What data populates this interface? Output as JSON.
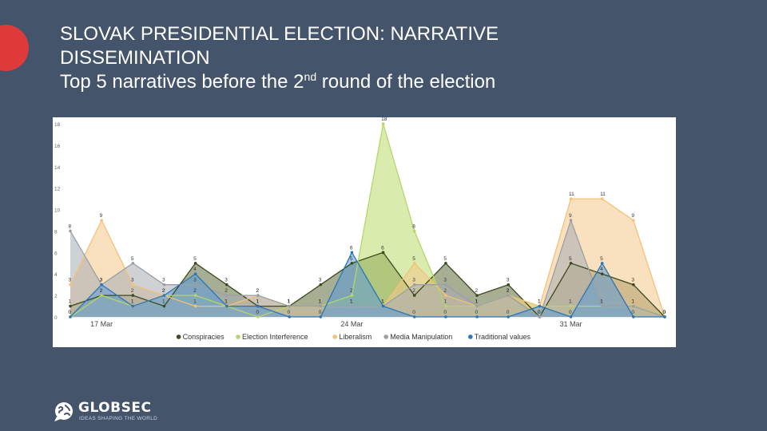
{
  "slide": {
    "title_line1": "SLOVAK PRESIDENTIAL ELECTION: NARRATIVE",
    "title_line2": "DISSEMINATION",
    "title_line3_pre": "Top 5 narratives before the 2",
    "title_line3_sup": "nd",
    "title_line3_post": " round of the election",
    "accent_color": "#e03b3b",
    "background_color": "#44546a"
  },
  "logo": {
    "name": "GLOBSEC",
    "tagline": "IDEAS SHAPING THE WORLD",
    "icon": "globe-speech-bubble-icon"
  },
  "chart_data": {
    "type": "area",
    "x_tick_labels": [
      "17 Mar",
      "24 Mar",
      "31 Mar"
    ],
    "x_tick_index": [
      1,
      9,
      16
    ],
    "ylim": [
      0,
      18
    ],
    "y_ticks": [
      0,
      2,
      4,
      6,
      8,
      10,
      12,
      14,
      16,
      18
    ],
    "legend_position": "bottom",
    "grid": false,
    "series": [
      {
        "name": "Conspiracies",
        "color": "#3b4a1e",
        "fill": "#5c6b3d",
        "values": [
          1,
          2,
          2,
          1,
          5,
          3,
          1,
          1,
          3,
          5,
          6,
          2,
          5,
          2,
          3,
          0,
          5,
          4,
          3,
          0
        ]
      },
      {
        "name": "Election Interference",
        "color": "#b5d66a",
        "fill": "#b9dc6b",
        "values": [
          0,
          2,
          1,
          2,
          2,
          1,
          0,
          1,
          1,
          2,
          18,
          8,
          1,
          1,
          2,
          1,
          1,
          1,
          1,
          0
        ]
      },
      {
        "name": "Liberalism",
        "color": "#f2c27a",
        "fill": "#f4c68a",
        "values": [
          3,
          9,
          3,
          2,
          1,
          1,
          2,
          1,
          1,
          1,
          1,
          5,
          2,
          1,
          2,
          1,
          11,
          11,
          9,
          0
        ]
      },
      {
        "name": "Media Manipulation",
        "color": "#9aa0a6",
        "fill": "#a7adb3",
        "values": [
          8,
          3,
          5,
          3,
          3,
          2,
          2,
          1,
          1,
          1,
          1,
          3,
          3,
          1,
          2,
          0,
          9,
          1,
          1,
          0
        ]
      },
      {
        "name": "Traditional values",
        "color": "#2e75b6",
        "fill": "#5b9bd5",
        "values": [
          0,
          3,
          1,
          2,
          4,
          1,
          1,
          0,
          0,
          6,
          1,
          0,
          0,
          0,
          0,
          1,
          0,
          5,
          0,
          0
        ]
      }
    ]
  }
}
